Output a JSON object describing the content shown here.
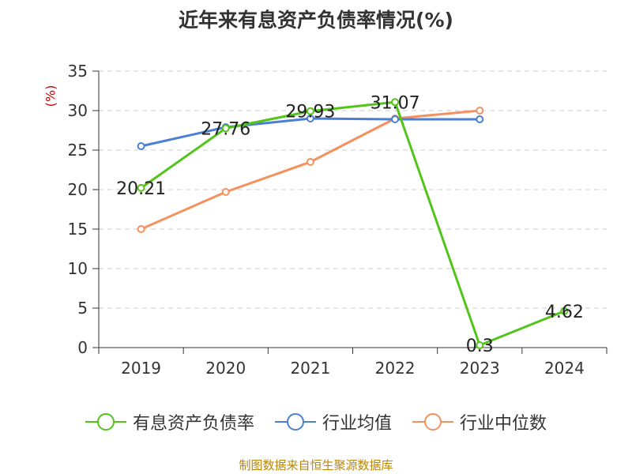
{
  "title": "近年来有息资产负债率情况(%)",
  "y_unit": "(%)",
  "source": "制图数据来自恒生聚源数据库",
  "chart_data": {
    "type": "line",
    "title": "近年来有息资产负债率情况(%)",
    "xlabel": "",
    "ylabel": "(%)",
    "categories": [
      "2019",
      "2020",
      "2021",
      "2022",
      "2023",
      "2024"
    ],
    "ylim": [
      0,
      35
    ],
    "yticks": [
      0,
      5,
      10,
      15,
      20,
      25,
      30,
      35
    ],
    "grid": true,
    "legend_position": "bottom",
    "series": [
      {
        "name": "有息资产负债率",
        "color": "#52c41a",
        "values": [
          20.21,
          27.76,
          29.93,
          31.07,
          0.3,
          4.62
        ],
        "labels": [
          "20.21",
          "27.76",
          "29.93",
          "31.07",
          "0.3",
          "4.62"
        ]
      },
      {
        "name": "行业均值",
        "color": "#4a7fd4",
        "values": [
          25.5,
          27.9,
          29.0,
          28.9,
          28.9,
          null
        ]
      },
      {
        "name": "行业中位数",
        "color": "#f4915e",
        "values": [
          15.0,
          19.7,
          23.5,
          29.0,
          30.0,
          null
        ]
      }
    ]
  }
}
